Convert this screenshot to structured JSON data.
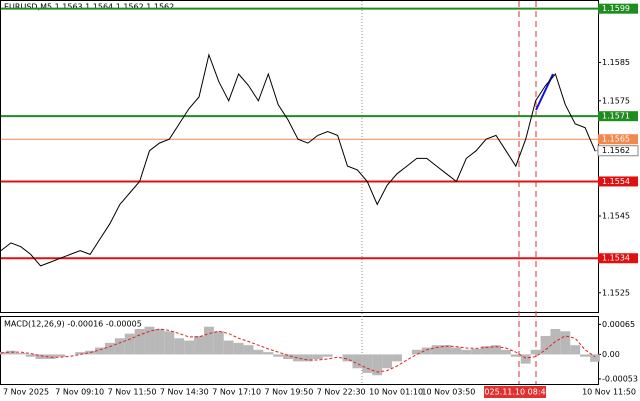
{
  "chart_data": [
    {
      "type": "line",
      "title": "EURUSD,M5 1.1563 1.1564 1.1562 1.1562",
      "color": "#000000",
      "values": [
        1.1536,
        1.1538,
        1.1537,
        1.1535,
        1.1532,
        1.1533,
        1.1534,
        1.1535,
        1.1536,
        1.1535,
        1.1539,
        1.1543,
        1.1548,
        1.1551,
        1.1554,
        1.1562,
        1.1564,
        1.1565,
        1.1569,
        1.1573,
        1.1576,
        1.1587,
        1.158,
        1.1575,
        1.1582,
        1.1579,
        1.1575,
        1.1582,
        1.1574,
        1.157,
        1.1565,
        1.1564,
        1.1566,
        1.1567,
        1.1566,
        1.1558,
        1.1557,
        1.1554,
        1.1548,
        1.1553,
        1.1556,
        1.1558,
        1.156,
        1.156,
        1.1558,
        1.1556,
        1.1554,
        1.156,
        1.1562,
        1.1565,
        1.1566,
        1.1562,
        1.1558,
        1.1565,
        1.1575,
        1.1579,
        1.1582,
        1.1574,
        1.1569,
        1.1568,
        1.1562
      ],
      "ylim": [
        1.152,
        1.1601
      ],
      "yticks": [
        1.1585,
        1.1575,
        1.1545,
        1.1525
      ],
      "levels": [
        {
          "value": 1.1599,
          "color": "#1f8c1f"
        },
        {
          "value": 1.1571,
          "color": "#1f8c1f"
        },
        {
          "value": 1.1565,
          "color": "#f2884e"
        },
        {
          "value": 1.1554,
          "color": "#e01010"
        },
        {
          "value": 1.1534,
          "color": "#e01010"
        }
      ],
      "last_price": 1.1562,
      "x_labels": [
        "7 Nov 2025",
        "7 Nov 09:10",
        "7 Nov 11:50",
        "7 Nov 14:30",
        "7 Nov 17:10",
        "7 Nov 19:50",
        "7 Nov 22:30",
        "10 Nov 01:10",
        "10 Nov 03:50",
        "10 Nov 11:50"
      ],
      "cursor_label": "2025.11.10 08:45"
    },
    {
      "type": "bar",
      "title": "MACD(12,26,9) -0.00016 -0.00005",
      "color": "#b8b8b8",
      "values": [
        5e-05,
        8e-05,
        3e-05,
        -5e-05,
        -0.0001,
        -0.0001,
        -5e-05,
        0,
        5e-05,
        8e-05,
        0.00015,
        0.00025,
        0.00035,
        0.00045,
        0.00055,
        0.0006,
        0.00055,
        0.0005,
        0.00035,
        0.0003,
        0.0004,
        0.0006,
        0.0005,
        0.0003,
        0.00025,
        0.0002,
        0.0001,
        5e-05,
        -5e-05,
        -0.0001,
        -0.00015,
        -0.00015,
        -0.0001,
        -5e-05,
        0,
        -0.00015,
        -0.0003,
        -0.0004,
        -0.00045,
        -0.0003,
        -0.00015,
        0,
        0.0001,
        0.00015,
        0.0002,
        0.0002,
        0.00015,
        0.0001,
        0.00012,
        0.00018,
        0.0002,
        0.0001,
        -5e-05,
        -0.0002,
        0.0001,
        0.0004,
        0.00055,
        0.0005,
        0.0002,
        -5e-05,
        -0.00016
      ],
      "signal": {
        "color": "#e02020",
        "values": [
          3e-05,
          5e-05,
          5e-05,
          2e-05,
          -3e-05,
          -6e-05,
          -6e-05,
          -4e-05,
          0,
          4e-05,
          0.0001,
          0.00017,
          0.00025,
          0.00033,
          0.00042,
          0.0005,
          0.00055,
          0.00052,
          0.00045,
          0.00038,
          0.00038,
          0.00045,
          0.0005,
          0.00045,
          0.00035,
          0.00028,
          0.0002,
          0.00012,
          5e-05,
          -2e-05,
          -8e-05,
          -0.00012,
          -0.00012,
          -0.0001,
          -6e-05,
          -0.0001,
          -0.0002,
          -0.0003,
          -0.00038,
          -0.00035,
          -0.00025,
          -0.00012,
          0,
          0.0001,
          0.00015,
          0.00018,
          0.00017,
          0.00014,
          0.00013,
          0.00015,
          0.00017,
          0.00014,
          5e-05,
          -8e-05,
          -5e-05,
          0.0001,
          0.00028,
          0.0004,
          0.00035,
          0.0001,
          -5e-05
        ]
      },
      "ylim": [
        -0.00064,
        0.00081
      ],
      "yticks": [
        0.00065,
        {
          "value": 0,
          "label": "0.00"
        },
        -0.00053
      ]
    }
  ]
}
